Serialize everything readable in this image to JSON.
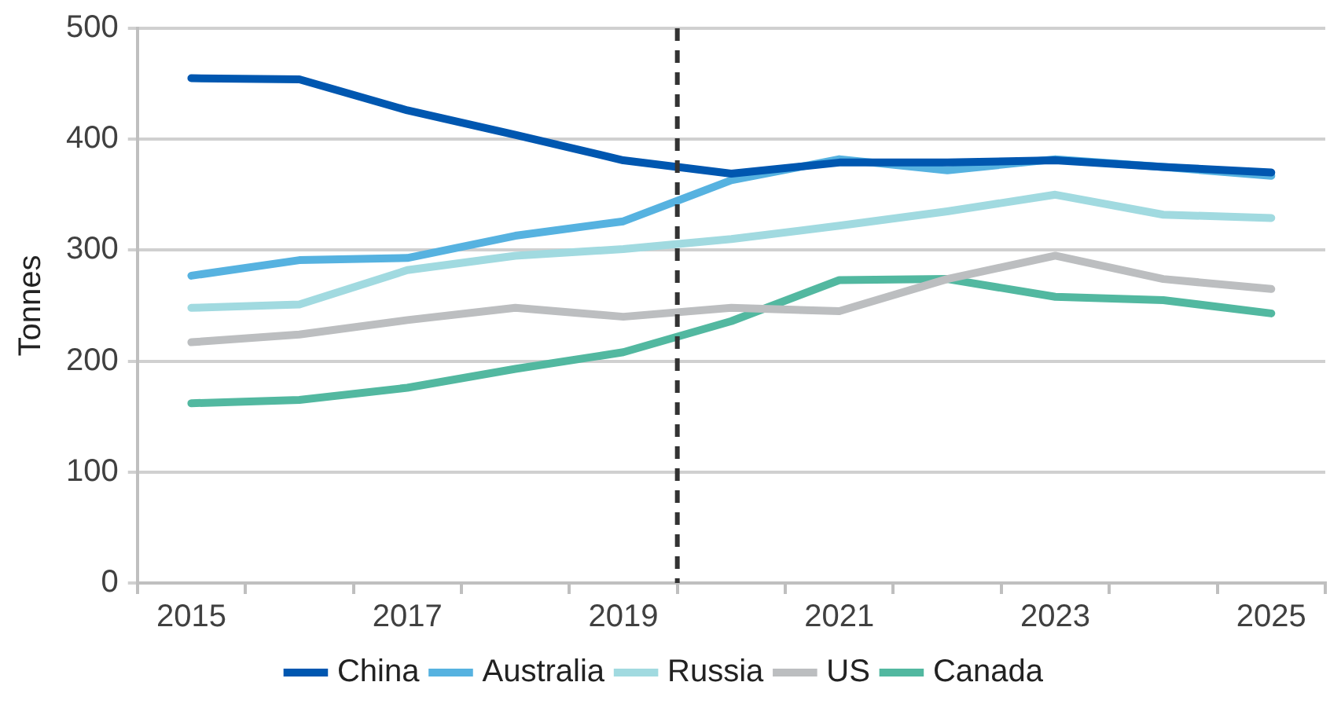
{
  "chart_data": {
    "type": "line",
    "ylabel": "Tonnes",
    "x": [
      2015,
      2016,
      2017,
      2018,
      2019,
      2020,
      2021,
      2022,
      2023,
      2024,
      2025
    ],
    "xlim": [
      2014.5,
      2025.5
    ],
    "xticks": [
      {
        "value": 2014.5,
        "label": null
      },
      2015,
      {
        "value": 2015.5,
        "label": null
      },
      {
        "value": 2016.5,
        "label": null
      },
      2017,
      {
        "value": 2017.5,
        "label": null
      },
      {
        "value": 2018.5,
        "label": null
      },
      2019,
      {
        "value": 2019.5,
        "label": null
      },
      {
        "value": 2020.5,
        "label": null
      },
      2021,
      {
        "value": 2021.5,
        "label": null
      },
      {
        "value": 2022.5,
        "label": null
      },
      2023,
      {
        "value": 2023.5,
        "label": null
      },
      {
        "value": 2024.5,
        "label": null
      },
      2025,
      {
        "value": 2025.5,
        "label": null
      }
    ],
    "ylim": [
      0,
      500
    ],
    "yticks": [
      0,
      100,
      200,
      300,
      400,
      500
    ],
    "grid": "y",
    "legend": "bottom",
    "marker": "none",
    "line_style": "solid",
    "ref_lines": [
      {
        "axis": "x",
        "value": 2019.5,
        "color": "#333333",
        "line_style": "dashed"
      }
    ],
    "series": [
      {
        "name": "China",
        "color": "#0057b0",
        "values": [
          455,
          454,
          426,
          404,
          381,
          369,
          379,
          379,
          381,
          375,
          370
        ]
      },
      {
        "name": "Australia",
        "color": "#56b2e0",
        "values": [
          277,
          291,
          293,
          313,
          326,
          363,
          382,
          372,
          382,
          375,
          367
        ]
      },
      {
        "name": "Russia",
        "color": "#a1dae0",
        "values": [
          248,
          251,
          282,
          295,
          301,
          310,
          322,
          335,
          350,
          332,
          329
        ]
      },
      {
        "name": "US",
        "color": "#bcbec0",
        "values": [
          217,
          224,
          237,
          248,
          240,
          248,
          245,
          274,
          295,
          274,
          265
        ]
      },
      {
        "name": "Canada",
        "color": "#52b8a0",
        "values": [
          162,
          165,
          176,
          193,
          208,
          236,
          273,
          274,
          258,
          255,
          243
        ]
      }
    ]
  }
}
